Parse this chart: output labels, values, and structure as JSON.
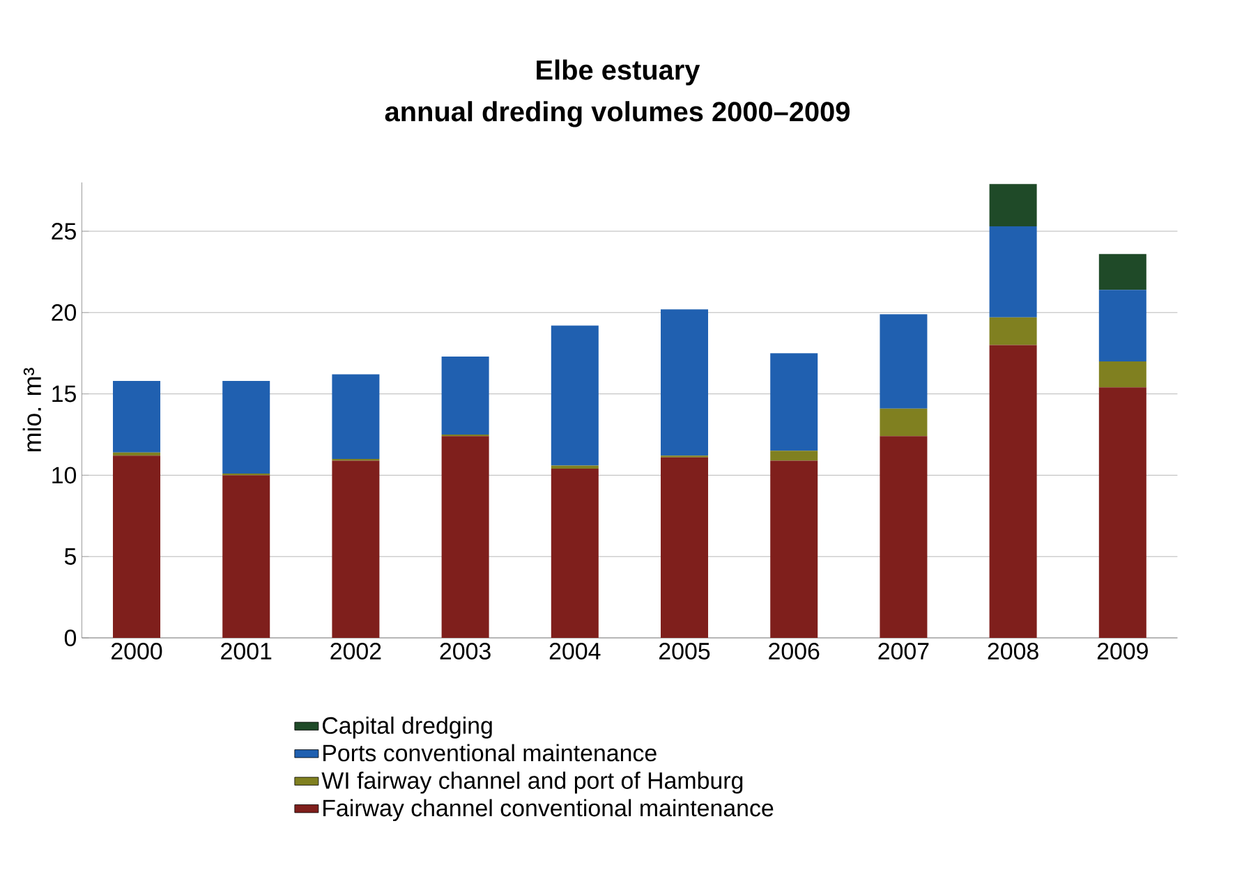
{
  "chart_data": {
    "type": "bar",
    "stacked": true,
    "title": "Elbe estuary\nannual dreding volumes 2000–2009",
    "ylabel": "mio. m³",
    "categories": [
      "2000",
      "2001",
      "2002",
      "2003",
      "2004",
      "2005",
      "2006",
      "2007",
      "2008",
      "2009"
    ],
    "series": [
      {
        "name": "Fairway channel conventional maintenance",
        "color": "#7f1f1c",
        "values": [
          11.2,
          10.0,
          10.9,
          12.4,
          10.4,
          11.1,
          10.9,
          12.4,
          18.0,
          15.4
        ]
      },
      {
        "name": "WI fairway channel and port of Hamburg",
        "color": "#808020",
        "values": [
          0.2,
          0.1,
          0.1,
          0.1,
          0.2,
          0.1,
          0.6,
          1.7,
          1.7,
          1.6
        ]
      },
      {
        "name": "Ports conventional maintenance",
        "color": "#2060b0",
        "values": [
          4.4,
          5.7,
          5.2,
          4.8,
          8.6,
          9.0,
          6.0,
          5.8,
          5.6,
          4.4
        ]
      },
      {
        "name": "Capital dredging",
        "color": "#1f4a28",
        "values": [
          0,
          0,
          0,
          0,
          0,
          0,
          0,
          0,
          2.6,
          2.2
        ]
      }
    ],
    "ylim": [
      0,
      28
    ],
    "yticks": [
      0,
      5,
      10,
      15,
      20,
      25
    ],
    "grid": "y",
    "legend": "bottom"
  }
}
